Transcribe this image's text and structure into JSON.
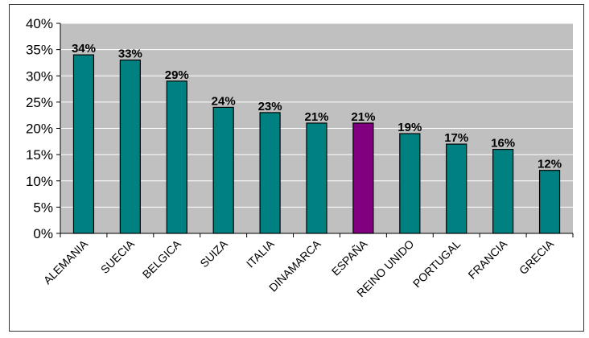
{
  "chart_data": {
    "type": "bar",
    "title": "",
    "xlabel": "",
    "ylabel": "",
    "categories": [
      "ALEMANIA",
      "SUECIA",
      "BELGICA",
      "SUIZA",
      "ITALIA",
      "DINAMARCA",
      "ESPAÑA",
      "REINO UNIDO",
      "PORTUGAL",
      "FRANCIA",
      "GRECIA"
    ],
    "values": [
      34,
      33,
      29,
      24,
      23,
      21,
      21,
      19,
      17,
      16,
      12
    ],
    "data_labels": [
      "34%",
      "33%",
      "29%",
      "24%",
      "23%",
      "21%",
      "21%",
      "19%",
      "17%",
      "16%",
      "12%"
    ],
    "highlight_category": "ESPAÑA",
    "ylim": [
      0,
      40
    ],
    "yticks": [
      0,
      5,
      10,
      15,
      20,
      25,
      30,
      35,
      40
    ],
    "ytick_labels": [
      "0%",
      "5%",
      "10%",
      "15%",
      "20%",
      "25%",
      "30%",
      "35%",
      "40%"
    ],
    "grid": true,
    "legend": "none",
    "colors": {
      "bar": "#008080",
      "highlight": "#800080",
      "plot_bg": "#c0c0c0",
      "grid": "#ffffff"
    }
  }
}
